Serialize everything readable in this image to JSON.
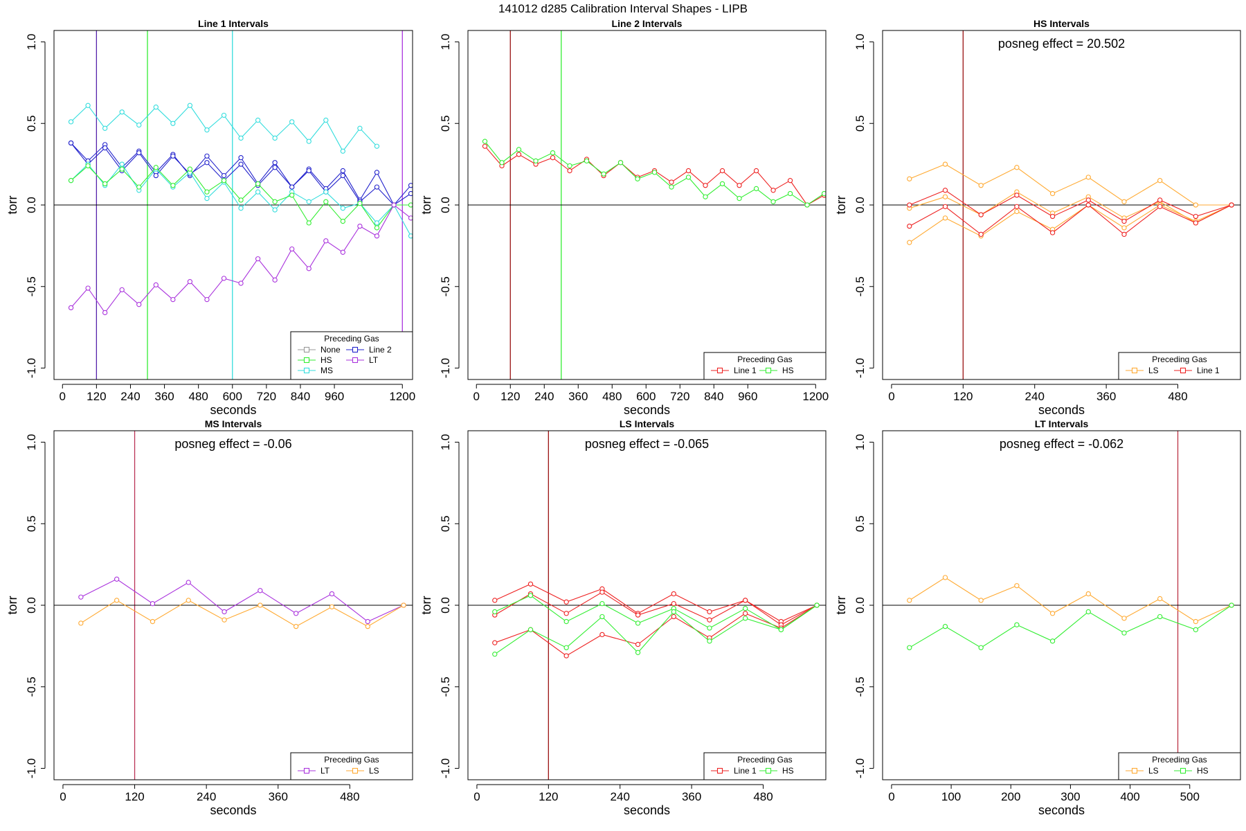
{
  "figure": {
    "title": "141012   d285   Calibration Interval Shapes - LIPB",
    "colors": {
      "None": "#999999",
      "HS": "#33ee33",
      "MS": "#33dddd",
      "Line 2": "#2222cc",
      "LT": "#aa33dd",
      "Line 1": "#ee2222",
      "LS": "#ffaa33"
    }
  },
  "chart_data": [
    {
      "type": "line",
      "title": "Line 1 Intervals",
      "xlabel": "seconds",
      "ylabel": "torr",
      "xlim": [
        -30,
        1236
      ],
      "ylim": [
        -1.07,
        1.07
      ],
      "xticks": [
        0,
        120,
        240,
        360,
        480,
        600,
        720,
        840,
        960,
        1200
      ],
      "yticks": [
        -1.0,
        -0.5,
        0.0,
        0.5,
        1.0
      ],
      "vlines": [
        {
          "x": 120,
          "color": "#5522aa"
        },
        {
          "x": 300,
          "color": "#33ee33"
        },
        {
          "x": 600,
          "color": "#33dddd"
        },
        {
          "x": 1200,
          "color": "#aa33dd"
        }
      ],
      "legend": {
        "title": "Preceding Gas",
        "position": "bottom-right",
        "columns": 2,
        "entries": [
          "None",
          "HS",
          "MS",
          "Line 2",
          "LT"
        ]
      },
      "annotation": "",
      "series": [
        {
          "name": "Line 2",
          "color": "#2222cc",
          "x": [
            30,
            90,
            150,
            210,
            270,
            330,
            390,
            450,
            510,
            570,
            630,
            690,
            750,
            810,
            870,
            930,
            990,
            1050,
            1110,
            1170,
            1230
          ],
          "y": [
            0.38,
            0.27,
            0.37,
            0.23,
            0.33,
            0.2,
            0.31,
            0.18,
            0.3,
            0.18,
            0.29,
            0.13,
            0.26,
            0.11,
            0.22,
            0.1,
            0.21,
            0.03,
            0.2,
            0.0,
            0.12
          ]
        },
        {
          "name": "Line 2",
          "color": "#2222cc",
          "x": [
            30,
            90,
            150,
            210,
            270,
            330,
            390,
            450,
            510,
            570,
            630,
            690,
            750,
            810,
            870,
            930,
            990,
            1050,
            1110,
            1170,
            1230
          ],
          "y": [
            0.38,
            0.25,
            0.35,
            0.21,
            0.32,
            0.18,
            0.3,
            0.19,
            0.26,
            0.15,
            0.25,
            0.12,
            0.23,
            0.11,
            0.21,
            0.08,
            0.18,
            0.02,
            0.11,
            0.0,
            0.07
          ]
        },
        {
          "name": "MS",
          "color": "#33dddd",
          "x": [
            30,
            90,
            150,
            210,
            270,
            330,
            390,
            450,
            510,
            570,
            630,
            690,
            750,
            810,
            870,
            930,
            990,
            1050,
            1110
          ],
          "y": [
            0.51,
            0.61,
            0.47,
            0.57,
            0.49,
            0.6,
            0.5,
            0.61,
            0.46,
            0.55,
            0.41,
            0.52,
            0.41,
            0.51,
            0.39,
            0.52,
            0.33,
            0.47,
            0.36
          ]
        },
        {
          "name": "MS",
          "color": "#33dddd",
          "x": [
            30,
            90,
            150,
            210,
            270,
            330,
            390,
            450,
            510,
            570,
            630,
            690,
            750,
            810,
            870,
            930,
            990,
            1050,
            1110,
            1170,
            1230
          ],
          "y": [
            0.15,
            0.25,
            0.12,
            0.25,
            0.09,
            0.22,
            0.11,
            0.2,
            0.04,
            0.14,
            -0.02,
            0.08,
            -0.03,
            0.08,
            0.02,
            0.08,
            -0.02,
            0.01,
            -0.11,
            0.0,
            -0.19
          ]
        },
        {
          "name": "HS",
          "color": "#33ee33",
          "x": [
            30,
            90,
            150,
            210,
            270,
            330,
            390,
            450,
            510,
            570,
            630,
            690,
            750,
            810,
            870,
            930,
            990,
            1050,
            1110,
            1170,
            1230
          ],
          "y": [
            0.15,
            0.24,
            0.13,
            0.22,
            0.11,
            0.23,
            0.12,
            0.22,
            0.08,
            0.15,
            0.03,
            0.13,
            0.02,
            0.06,
            -0.11,
            0.02,
            -0.1,
            0.01,
            -0.14,
            0.0,
            0.0
          ]
        },
        {
          "name": "LT",
          "color": "#aa33dd",
          "x": [
            30,
            90,
            150,
            210,
            270,
            330,
            390,
            450,
            510,
            570,
            630,
            690,
            750,
            810,
            870,
            930,
            990,
            1050,
            1110,
            1170,
            1230
          ],
          "y": [
            -0.63,
            -0.51,
            -0.66,
            -0.52,
            -0.61,
            -0.49,
            -0.58,
            -0.47,
            -0.58,
            -0.45,
            -0.48,
            -0.33,
            -0.46,
            -0.27,
            -0.39,
            -0.22,
            -0.29,
            -0.13,
            -0.19,
            0.0,
            -0.08
          ]
        }
      ]
    },
    {
      "type": "line",
      "title": "Line 2 Intervals",
      "xlabel": "seconds",
      "ylabel": "torr",
      "xlim": [
        -30,
        1236
      ],
      "ylim": [
        -1.07,
        1.07
      ],
      "xticks": [
        0,
        120,
        240,
        360,
        480,
        600,
        720,
        840,
        960,
        1200
      ],
      "yticks": [
        -1.0,
        -0.5,
        0.0,
        0.5,
        1.0
      ],
      "vlines": [
        {
          "x": 120,
          "color": "#991111"
        },
        {
          "x": 300,
          "color": "#33ee33"
        }
      ],
      "legend": {
        "title": "Preceding Gas",
        "position": "bottom-right",
        "columns": 2,
        "entries": [
          "Line 1",
          "HS"
        ]
      },
      "annotation": "",
      "series": [
        {
          "name": "Line 1",
          "color": "#ee2222",
          "x": [
            30,
            90,
            150,
            210,
            270,
            330,
            390,
            450,
            510,
            570,
            630,
            690,
            750,
            810,
            870,
            930,
            990,
            1050,
            1110,
            1170,
            1230
          ],
          "y": [
            0.36,
            0.24,
            0.31,
            0.25,
            0.29,
            0.21,
            0.28,
            0.18,
            0.26,
            0.17,
            0.21,
            0.14,
            0.21,
            0.12,
            0.21,
            0.12,
            0.21,
            0.09,
            0.15,
            0.0,
            0.06
          ]
        },
        {
          "name": "HS",
          "color": "#33ee33",
          "x": [
            30,
            90,
            150,
            210,
            270,
            330,
            390,
            450,
            510,
            570,
            630,
            690,
            750,
            810,
            870,
            930,
            990,
            1050,
            1110,
            1170,
            1230
          ],
          "y": [
            0.39,
            0.26,
            0.34,
            0.27,
            0.32,
            0.24,
            0.27,
            0.19,
            0.26,
            0.16,
            0.2,
            0.11,
            0.17,
            0.05,
            0.13,
            0.04,
            0.1,
            0.02,
            0.07,
            0.0,
            0.07
          ]
        }
      ]
    },
    {
      "type": "line",
      "title": "HS Intervals",
      "xlabel": "seconds",
      "ylabel": "torr",
      "xlim": [
        -15,
        585
      ],
      "ylim": [
        -1.07,
        1.07
      ],
      "xticks": [
        0,
        120,
        240,
        360,
        480
      ],
      "yticks": [
        -1.0,
        -0.5,
        0.0,
        0.5,
        1.0
      ],
      "vlines": [
        {
          "x": 120,
          "color": "#991111"
        }
      ],
      "legend": {
        "title": "Preceding Gas",
        "position": "bottom-right",
        "columns": 2,
        "entries": [
          "LS",
          "Line 1"
        ]
      },
      "annotation": "posneg effect = 20.502",
      "series": [
        {
          "name": "LS",
          "color": "#ffaa33",
          "x": [
            30,
            90,
            150,
            210,
            270,
            330,
            390,
            450,
            510,
            570
          ],
          "y": [
            0.16,
            0.25,
            0.12,
            0.23,
            0.07,
            0.17,
            0.02,
            0.15,
            0.0,
            0.0
          ]
        },
        {
          "name": "LS",
          "color": "#ffaa33",
          "x": [
            30,
            90,
            150,
            210,
            270,
            330,
            390,
            450,
            510,
            570
          ],
          "y": [
            -0.02,
            0.05,
            -0.06,
            0.08,
            -0.05,
            0.05,
            -0.08,
            0.02,
            -0.11,
            0.0
          ]
        },
        {
          "name": "LS",
          "color": "#ffaa33",
          "x": [
            30,
            90,
            150,
            210,
            270,
            330,
            390,
            450,
            510,
            570
          ],
          "y": [
            -0.23,
            -0.08,
            -0.19,
            -0.04,
            -0.15,
            0.0,
            -0.14,
            0.0,
            -0.1,
            0.0
          ]
        },
        {
          "name": "Line 1",
          "color": "#ee2222",
          "x": [
            30,
            90,
            150,
            210,
            270,
            330,
            390,
            450,
            510,
            570
          ],
          "y": [
            0.0,
            0.09,
            -0.06,
            0.06,
            -0.07,
            0.03,
            -0.1,
            0.03,
            -0.07,
            0.0
          ]
        },
        {
          "name": "Line 1",
          "color": "#ee2222",
          "x": [
            30,
            90,
            150,
            210,
            270,
            330,
            390,
            450,
            510,
            570
          ],
          "y": [
            -0.13,
            -0.01,
            -0.18,
            -0.01,
            -0.17,
            0.0,
            -0.18,
            -0.01,
            -0.11,
            0.0
          ]
        }
      ]
    },
    {
      "type": "line",
      "title": "MS Intervals",
      "xlabel": "seconds",
      "ylabel": "torr",
      "xlim": [
        -15,
        585
      ],
      "ylim": [
        -1.07,
        1.07
      ],
      "xticks": [
        0,
        120,
        240,
        360,
        480
      ],
      "yticks": [
        -1.0,
        -0.5,
        0.0,
        0.5,
        1.0
      ],
      "vlines": [
        {
          "x": 120,
          "color": "#bb3355"
        }
      ],
      "legend": {
        "title": "Preceding Gas",
        "position": "bottom-right",
        "columns": 2,
        "entries": [
          "LT",
          "LS"
        ]
      },
      "annotation": "posneg effect = -0.06",
      "series": [
        {
          "name": "LT",
          "color": "#aa33dd",
          "x": [
            30,
            90,
            150,
            210,
            270,
            330,
            390,
            450,
            510,
            570
          ],
          "y": [
            0.05,
            0.16,
            0.01,
            0.14,
            -0.04,
            0.09,
            -0.05,
            0.07,
            -0.1,
            0.0
          ]
        },
        {
          "name": "LS",
          "color": "#ffaa33",
          "x": [
            30,
            90,
            150,
            210,
            270,
            330,
            390,
            450,
            510,
            570
          ],
          "y": [
            -0.11,
            0.03,
            -0.1,
            0.03,
            -0.09,
            0.0,
            -0.13,
            -0.01,
            -0.13,
            0.0
          ]
        }
      ]
    },
    {
      "type": "line",
      "title": "LS Intervals",
      "xlabel": "seconds",
      "ylabel": "torr",
      "xlim": [
        -15,
        585
      ],
      "ylim": [
        -1.07,
        1.07
      ],
      "xticks": [
        0,
        120,
        240,
        360,
        480
      ],
      "yticks": [
        -1.0,
        -0.5,
        0.0,
        0.5,
        1.0
      ],
      "vlines": [
        {
          "x": 120,
          "color": "#991111"
        }
      ],
      "legend": {
        "title": "Preceding Gas",
        "position": "bottom-right",
        "columns": 2,
        "entries": [
          "Line 1",
          "HS"
        ]
      },
      "annotation": "posneg effect = -0.065",
      "series": [
        {
          "name": "Line 1",
          "color": "#ee2222",
          "x": [
            30,
            90,
            150,
            210,
            270,
            330,
            390,
            450,
            510,
            570
          ],
          "y": [
            0.03,
            0.13,
            0.02,
            0.1,
            -0.05,
            0.07,
            -0.04,
            0.03,
            -0.1,
            0.0
          ]
        },
        {
          "name": "Line 1",
          "color": "#ee2222",
          "x": [
            30,
            90,
            150,
            210,
            270,
            330,
            390,
            450,
            510,
            570
          ],
          "y": [
            -0.06,
            0.07,
            -0.05,
            0.08,
            -0.06,
            0.01,
            -0.09,
            0.03,
            -0.12,
            0.0
          ]
        },
        {
          "name": "Line 1",
          "color": "#ee2222",
          "x": [
            30,
            90,
            150,
            210,
            270,
            330,
            390,
            450,
            510,
            570
          ],
          "y": [
            -0.23,
            -0.15,
            -0.31,
            -0.18,
            -0.24,
            -0.07,
            -0.2,
            -0.05,
            -0.14,
            0.0
          ]
        },
        {
          "name": "HS",
          "color": "#33ee33",
          "x": [
            30,
            90,
            150,
            210,
            270,
            330,
            390,
            450,
            510,
            570
          ],
          "y": [
            -0.04,
            0.06,
            -0.1,
            0.01,
            -0.11,
            -0.02,
            -0.14,
            -0.02,
            -0.15,
            0.0
          ]
        },
        {
          "name": "HS",
          "color": "#33ee33",
          "x": [
            30,
            90,
            150,
            210,
            270,
            330,
            390,
            450,
            510,
            570
          ],
          "y": [
            -0.3,
            -0.15,
            -0.26,
            -0.07,
            -0.29,
            -0.04,
            -0.22,
            -0.08,
            -0.15,
            0.0
          ]
        }
      ]
    },
    {
      "type": "line",
      "title": "LT Intervals",
      "xlabel": "seconds",
      "ylabel": "torr",
      "xlim": [
        -15,
        585
      ],
      "ylim": [
        -1.07,
        1.07
      ],
      "xticks": [
        0,
        100,
        200,
        300,
        400,
        500
      ],
      "yticks": [
        -1.0,
        -0.5,
        0.0,
        0.5,
        1.0
      ],
      "vlines": [
        {
          "x": 480,
          "color": "#bb3344"
        }
      ],
      "legend": {
        "title": "Preceding Gas",
        "position": "bottom-right",
        "columns": 2,
        "entries": [
          "LS",
          "HS"
        ]
      },
      "annotation": "posneg effect = -0.062",
      "series": [
        {
          "name": "LS",
          "color": "#ffaa33",
          "x": [
            30,
            90,
            150,
            210,
            270,
            330,
            390,
            450,
            510,
            570
          ],
          "y": [
            0.03,
            0.17,
            0.03,
            0.12,
            -0.05,
            0.07,
            -0.08,
            0.04,
            -0.1,
            0.0
          ]
        },
        {
          "name": "HS",
          "color": "#33ee33",
          "x": [
            30,
            90,
            150,
            210,
            270,
            330,
            390,
            450,
            510,
            570
          ],
          "y": [
            -0.26,
            -0.13,
            -0.26,
            -0.12,
            -0.22,
            -0.04,
            -0.17,
            -0.07,
            -0.15,
            0.0
          ]
        }
      ]
    }
  ]
}
